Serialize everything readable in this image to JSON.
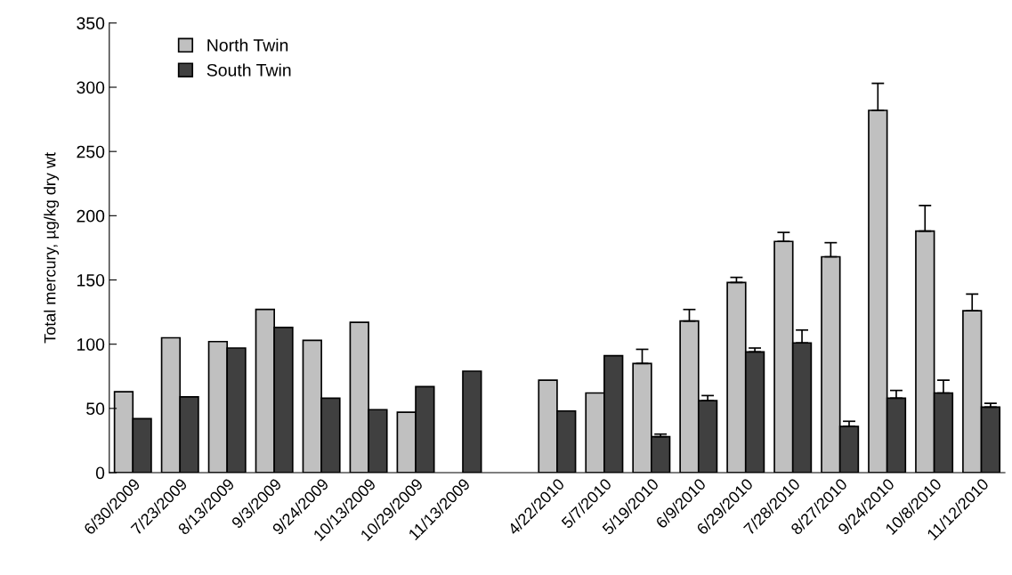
{
  "chart_data": {
    "type": "bar",
    "ylabel": "Total mercury, µg/kg dry wt",
    "categories": [
      "6/30/2009",
      "7/23/2009",
      "8/13/2009",
      "9/3/2009",
      "9/24/2009",
      "10/13/2009",
      "10/29/2009",
      "11/13/2009",
      null,
      "4/22/2010",
      "5/7/2010",
      "5/19/2010",
      "6/9/2010",
      "6/29/2010",
      "7/28/2010",
      "8/27/2010",
      "9/24/2010",
      "10/8/2010",
      "11/12/2010"
    ],
    "series": [
      {
        "name": "North Twin",
        "color": "#c0c0c0",
        "values": [
          63,
          105,
          102,
          127,
          103,
          117,
          47,
          null,
          null,
          72,
          62,
          85,
          118,
          148,
          180,
          168,
          282,
          188,
          126
        ],
        "errors": [
          null,
          null,
          null,
          null,
          null,
          null,
          null,
          null,
          null,
          null,
          null,
          11,
          9,
          4,
          7,
          11,
          21,
          20,
          13
        ]
      },
      {
        "name": "South Twin",
        "color": "#404040",
        "values": [
          42,
          59,
          97,
          113,
          58,
          49,
          67,
          79,
          null,
          48,
          91,
          28,
          56,
          94,
          101,
          36,
          58,
          62,
          51
        ],
        "errors": [
          null,
          null,
          null,
          null,
          null,
          null,
          null,
          null,
          null,
          null,
          null,
          2,
          4,
          3,
          10,
          4,
          6,
          10,
          3
        ]
      }
    ],
    "ylim": [
      0,
      350
    ],
    "yticks": [
      0,
      50,
      100,
      150,
      200,
      250,
      300,
      350
    ],
    "grid": false,
    "legend": "top left"
  }
}
